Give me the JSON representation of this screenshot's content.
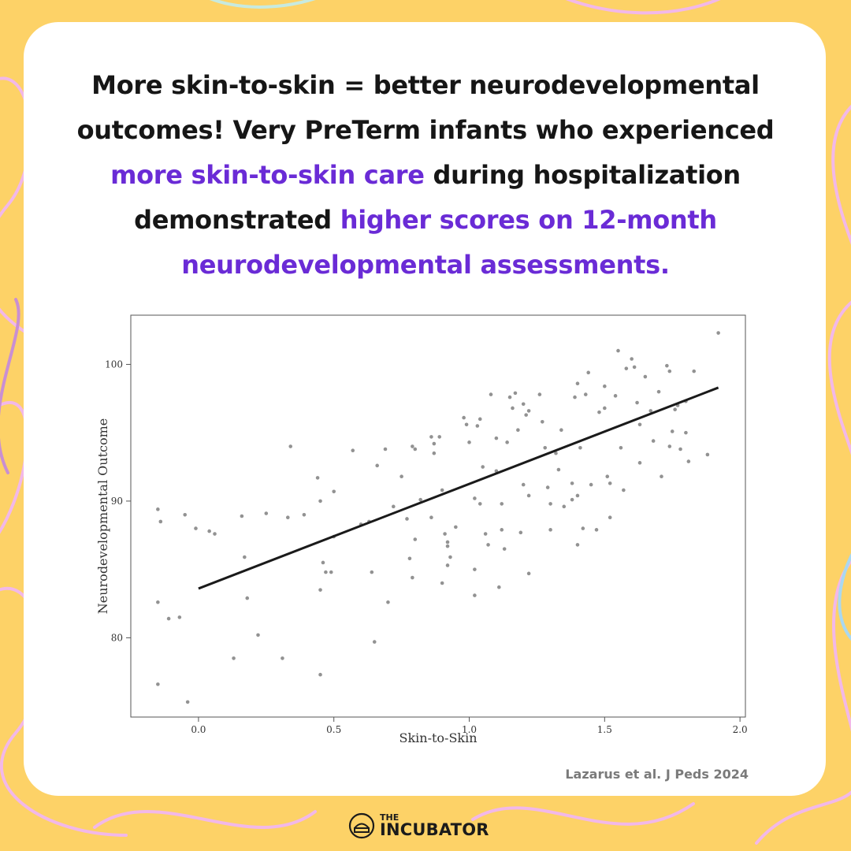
{
  "headline": {
    "part1": "More skin-to-skin = better neurodevelopmental outcomes! Very PreTerm infants who experienced ",
    "highlight1": "more skin-to-skin care",
    "part2": " during hospitalization demonstrated ",
    "highlight2": "higher scores on 12-month neurodevelopmental assessments."
  },
  "citation": "Lazarus et al. J Peds 2024",
  "brand": {
    "the": "THE",
    "name": "INCUBATOR"
  },
  "colors": {
    "background": "#fdd267",
    "accent": "#6a2bd6",
    "card": "#ffffff"
  },
  "chart_data": {
    "type": "scatter",
    "xlabel": "Skin-to-Skin",
    "ylabel": "Neurodevelopmental Outcome",
    "xlim": [
      -0.25,
      2.02
    ],
    "ylim": [
      74.2,
      103.6
    ],
    "xticks": [
      0.0,
      0.5,
      1.0,
      1.5,
      2.0
    ],
    "xtick_labels": [
      "0.0",
      "0.5",
      "1.0",
      "1.5",
      "2.0"
    ],
    "yticks": [
      80,
      90,
      100
    ],
    "ytick_labels": [
      "80",
      "90",
      "100"
    ],
    "grid": false,
    "trend_line": {
      "x": [
        0.0,
        1.92
      ],
      "y": [
        83.6,
        98.3
      ]
    },
    "points": [
      [
        -0.15,
        89.4
      ],
      [
        -0.14,
        88.5
      ],
      [
        -0.15,
        82.6
      ],
      [
        -0.11,
        81.4
      ],
      [
        -0.15,
        76.6
      ],
      [
        -0.07,
        81.5
      ],
      [
        -0.05,
        89.0
      ],
      [
        -0.04,
        75.3
      ],
      [
        -0.01,
        88.0
      ],
      [
        0.04,
        87.8
      ],
      [
        0.06,
        87.6
      ],
      [
        0.16,
        88.9
      ],
      [
        0.17,
        85.9
      ],
      [
        0.18,
        82.9
      ],
      [
        0.13,
        78.5
      ],
      [
        0.22,
        80.2
      ],
      [
        0.25,
        89.1
      ],
      [
        0.31,
        78.5
      ],
      [
        0.33,
        88.8
      ],
      [
        0.34,
        94.0
      ],
      [
        0.39,
        89.0
      ],
      [
        0.44,
        91.7
      ],
      [
        0.45,
        90.0
      ],
      [
        0.46,
        85.5
      ],
      [
        0.47,
        84.8
      ],
      [
        0.45,
        83.5
      ],
      [
        0.45,
        77.3
      ],
      [
        0.49,
        84.8
      ],
      [
        0.5,
        90.7
      ],
      [
        0.5,
        87.4
      ],
      [
        0.6,
        88.3
      ],
      [
        0.57,
        93.7
      ],
      [
        0.63,
        88.5
      ],
      [
        0.64,
        84.8
      ],
      [
        0.65,
        79.7
      ],
      [
        0.66,
        92.6
      ],
      [
        0.69,
        93.8
      ],
      [
        0.7,
        82.6
      ],
      [
        0.72,
        89.6
      ],
      [
        0.75,
        91.8
      ],
      [
        0.79,
        94.0
      ],
      [
        0.77,
        88.7
      ],
      [
        0.78,
        85.8
      ],
      [
        0.79,
        84.4
      ],
      [
        0.8,
        93.8
      ],
      [
        0.82,
        90.1
      ],
      [
        0.8,
        87.2
      ],
      [
        0.86,
        94.7
      ],
      [
        0.87,
        94.2
      ],
      [
        0.89,
        94.7
      ],
      [
        0.86,
        88.8
      ],
      [
        0.87,
        93.5
      ],
      [
        0.9,
        90.8
      ],
      [
        0.91,
        87.6
      ],
      [
        0.92,
        86.7
      ],
      [
        0.93,
        85.9
      ],
      [
        0.92,
        85.3
      ],
      [
        0.9,
        84.0
      ],
      [
        0.92,
        87.0
      ],
      [
        0.95,
        88.1
      ],
      [
        0.98,
        96.1
      ],
      [
        0.99,
        95.6
      ],
      [
        1.0,
        94.3
      ],
      [
        1.03,
        95.5
      ],
      [
        1.04,
        96.0
      ],
      [
        1.05,
        92.5
      ],
      [
        1.02,
        90.2
      ],
      [
        1.04,
        89.8
      ],
      [
        1.07,
        86.8
      ],
      [
        1.06,
        87.6
      ],
      [
        1.02,
        85.0
      ],
      [
        1.02,
        83.1
      ],
      [
        1.08,
        97.8
      ],
      [
        1.1,
        94.6
      ],
      [
        1.1,
        92.2
      ],
      [
        1.12,
        89.8
      ],
      [
        1.12,
        87.9
      ],
      [
        1.13,
        86.5
      ],
      [
        1.11,
        83.7
      ],
      [
        1.14,
        94.3
      ],
      [
        1.15,
        97.6
      ],
      [
        1.16,
        96.8
      ],
      [
        1.17,
        97.9
      ],
      [
        1.18,
        95.2
      ],
      [
        1.2,
        97.1
      ],
      [
        1.21,
        96.3
      ],
      [
        1.22,
        96.6
      ],
      [
        1.2,
        91.2
      ],
      [
        1.22,
        90.4
      ],
      [
        1.19,
        87.7
      ],
      [
        1.22,
        84.7
      ],
      [
        1.26,
        97.8
      ],
      [
        1.27,
        95.8
      ],
      [
        1.28,
        93.9
      ],
      [
        1.29,
        91.0
      ],
      [
        1.3,
        89.8
      ],
      [
        1.3,
        87.9
      ],
      [
        1.32,
        93.5
      ],
      [
        1.33,
        92.3
      ],
      [
        1.34,
        95.2
      ],
      [
        1.35,
        89.6
      ],
      [
        1.38,
        91.3
      ],
      [
        1.38,
        90.1
      ],
      [
        1.39,
        97.6
      ],
      [
        1.4,
        98.6
      ],
      [
        1.41,
        93.9
      ],
      [
        1.4,
        90.4
      ],
      [
        1.43,
        97.8
      ],
      [
        1.44,
        99.4
      ],
      [
        1.42,
        88.0
      ],
      [
        1.4,
        86.8
      ],
      [
        1.45,
        91.2
      ],
      [
        1.47,
        87.9
      ],
      [
        1.48,
        96.5
      ],
      [
        1.5,
        98.4
      ],
      [
        1.5,
        96.8
      ],
      [
        1.51,
        91.8
      ],
      [
        1.52,
        91.3
      ],
      [
        1.52,
        88.8
      ],
      [
        1.54,
        97.7
      ],
      [
        1.55,
        101.0
      ],
      [
        1.56,
        93.9
      ],
      [
        1.57,
        90.8
      ],
      [
        1.58,
        99.7
      ],
      [
        1.6,
        100.4
      ],
      [
        1.61,
        99.8
      ],
      [
        1.62,
        97.2
      ],
      [
        1.63,
        95.6
      ],
      [
        1.63,
        92.8
      ],
      [
        1.65,
        99.1
      ],
      [
        1.67,
        96.6
      ],
      [
        1.68,
        94.4
      ],
      [
        1.7,
        98.0
      ],
      [
        1.71,
        91.8
      ],
      [
        1.73,
        99.9
      ],
      [
        1.74,
        99.5
      ],
      [
        1.74,
        94.0
      ],
      [
        1.75,
        95.1
      ],
      [
        1.76,
        96.7
      ],
      [
        1.77,
        97.0
      ],
      [
        1.78,
        93.8
      ],
      [
        1.8,
        97.3
      ],
      [
        1.8,
        95.0
      ],
      [
        1.81,
        92.9
      ],
      [
        1.83,
        99.5
      ],
      [
        1.88,
        93.4
      ],
      [
        1.92,
        102.3
      ]
    ]
  }
}
